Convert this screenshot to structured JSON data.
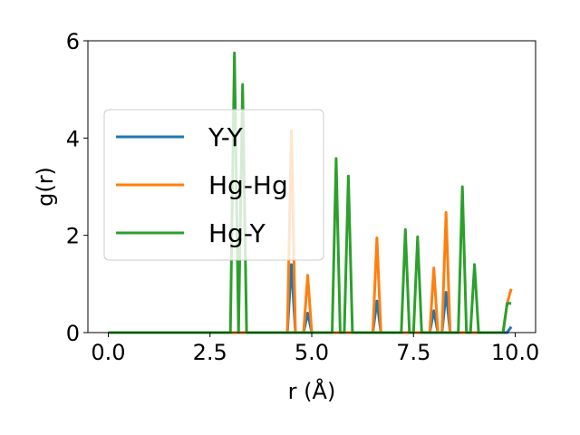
{
  "chart_data": {
    "type": "line",
    "xlabel": "r (Å)",
    "ylabel": "g(r)",
    "xlim": [
      -0.5,
      10.5
    ],
    "ylim": [
      0,
      6
    ],
    "xticks": [
      0.0,
      2.5,
      5.0,
      7.5,
      10.0
    ],
    "xtick_labels": [
      "0.0",
      "2.5",
      "5.0",
      "7.5",
      "10.0"
    ],
    "yticks": [
      0,
      2,
      4,
      6
    ],
    "ytick_labels": [
      "0",
      "2",
      "4",
      "6"
    ],
    "grid": false,
    "legend_position": "center-left",
    "series": [
      {
        "name": "Y-Y",
        "color": "#1f77b4",
        "points": [
          [
            0,
            0
          ],
          [
            4.4,
            0
          ],
          [
            4.5,
            1.4
          ],
          [
            4.6,
            0
          ],
          [
            4.8,
            0
          ],
          [
            4.9,
            0.4
          ],
          [
            5.0,
            0
          ],
          [
            6.5,
            0
          ],
          [
            6.6,
            0.65
          ],
          [
            6.7,
            0
          ],
          [
            7.9,
            0
          ],
          [
            8.0,
            0.45
          ],
          [
            8.1,
            0
          ],
          [
            8.2,
            0
          ],
          [
            8.3,
            0.83
          ],
          [
            8.4,
            0
          ],
          [
            9.8,
            0
          ],
          [
            9.9,
            0.12
          ]
        ]
      },
      {
        "name": "Hg-Hg",
        "color": "#ff7f0e",
        "points": [
          [
            0,
            0
          ],
          [
            4.4,
            0
          ],
          [
            4.5,
            4.15
          ],
          [
            4.6,
            0
          ],
          [
            4.8,
            0
          ],
          [
            4.9,
            1.18
          ],
          [
            5.0,
            0
          ],
          [
            6.5,
            0
          ],
          [
            6.6,
            1.95
          ],
          [
            6.7,
            0
          ],
          [
            7.9,
            0
          ],
          [
            8.0,
            1.33
          ],
          [
            8.1,
            0
          ],
          [
            8.2,
            0
          ],
          [
            8.3,
            2.47
          ],
          [
            8.4,
            0
          ],
          [
            9.7,
            0
          ],
          [
            9.8,
            0.6
          ],
          [
            9.9,
            0.9
          ]
        ]
      },
      {
        "name": "Hg-Y",
        "color": "#2ca02c",
        "points": [
          [
            0,
            0
          ],
          [
            3.0,
            0
          ],
          [
            3.1,
            5.75
          ],
          [
            3.2,
            0
          ],
          [
            3.3,
            5.1
          ],
          [
            3.4,
            0
          ],
          [
            5.5,
            0
          ],
          [
            5.6,
            3.58
          ],
          [
            5.7,
            0
          ],
          [
            5.8,
            0
          ],
          [
            5.9,
            3.22
          ],
          [
            6.0,
            0
          ],
          [
            7.2,
            0
          ],
          [
            7.3,
            2.12
          ],
          [
            7.4,
            0
          ],
          [
            7.5,
            0
          ],
          [
            7.6,
            1.97
          ],
          [
            7.7,
            0
          ],
          [
            8.6,
            0
          ],
          [
            8.7,
            3.0
          ],
          [
            8.8,
            0
          ],
          [
            8.9,
            0
          ],
          [
            9.0,
            1.4
          ],
          [
            9.1,
            0
          ],
          [
            9.7,
            0
          ],
          [
            9.8,
            0.6
          ],
          [
            9.9,
            0.6
          ]
        ]
      }
    ]
  }
}
